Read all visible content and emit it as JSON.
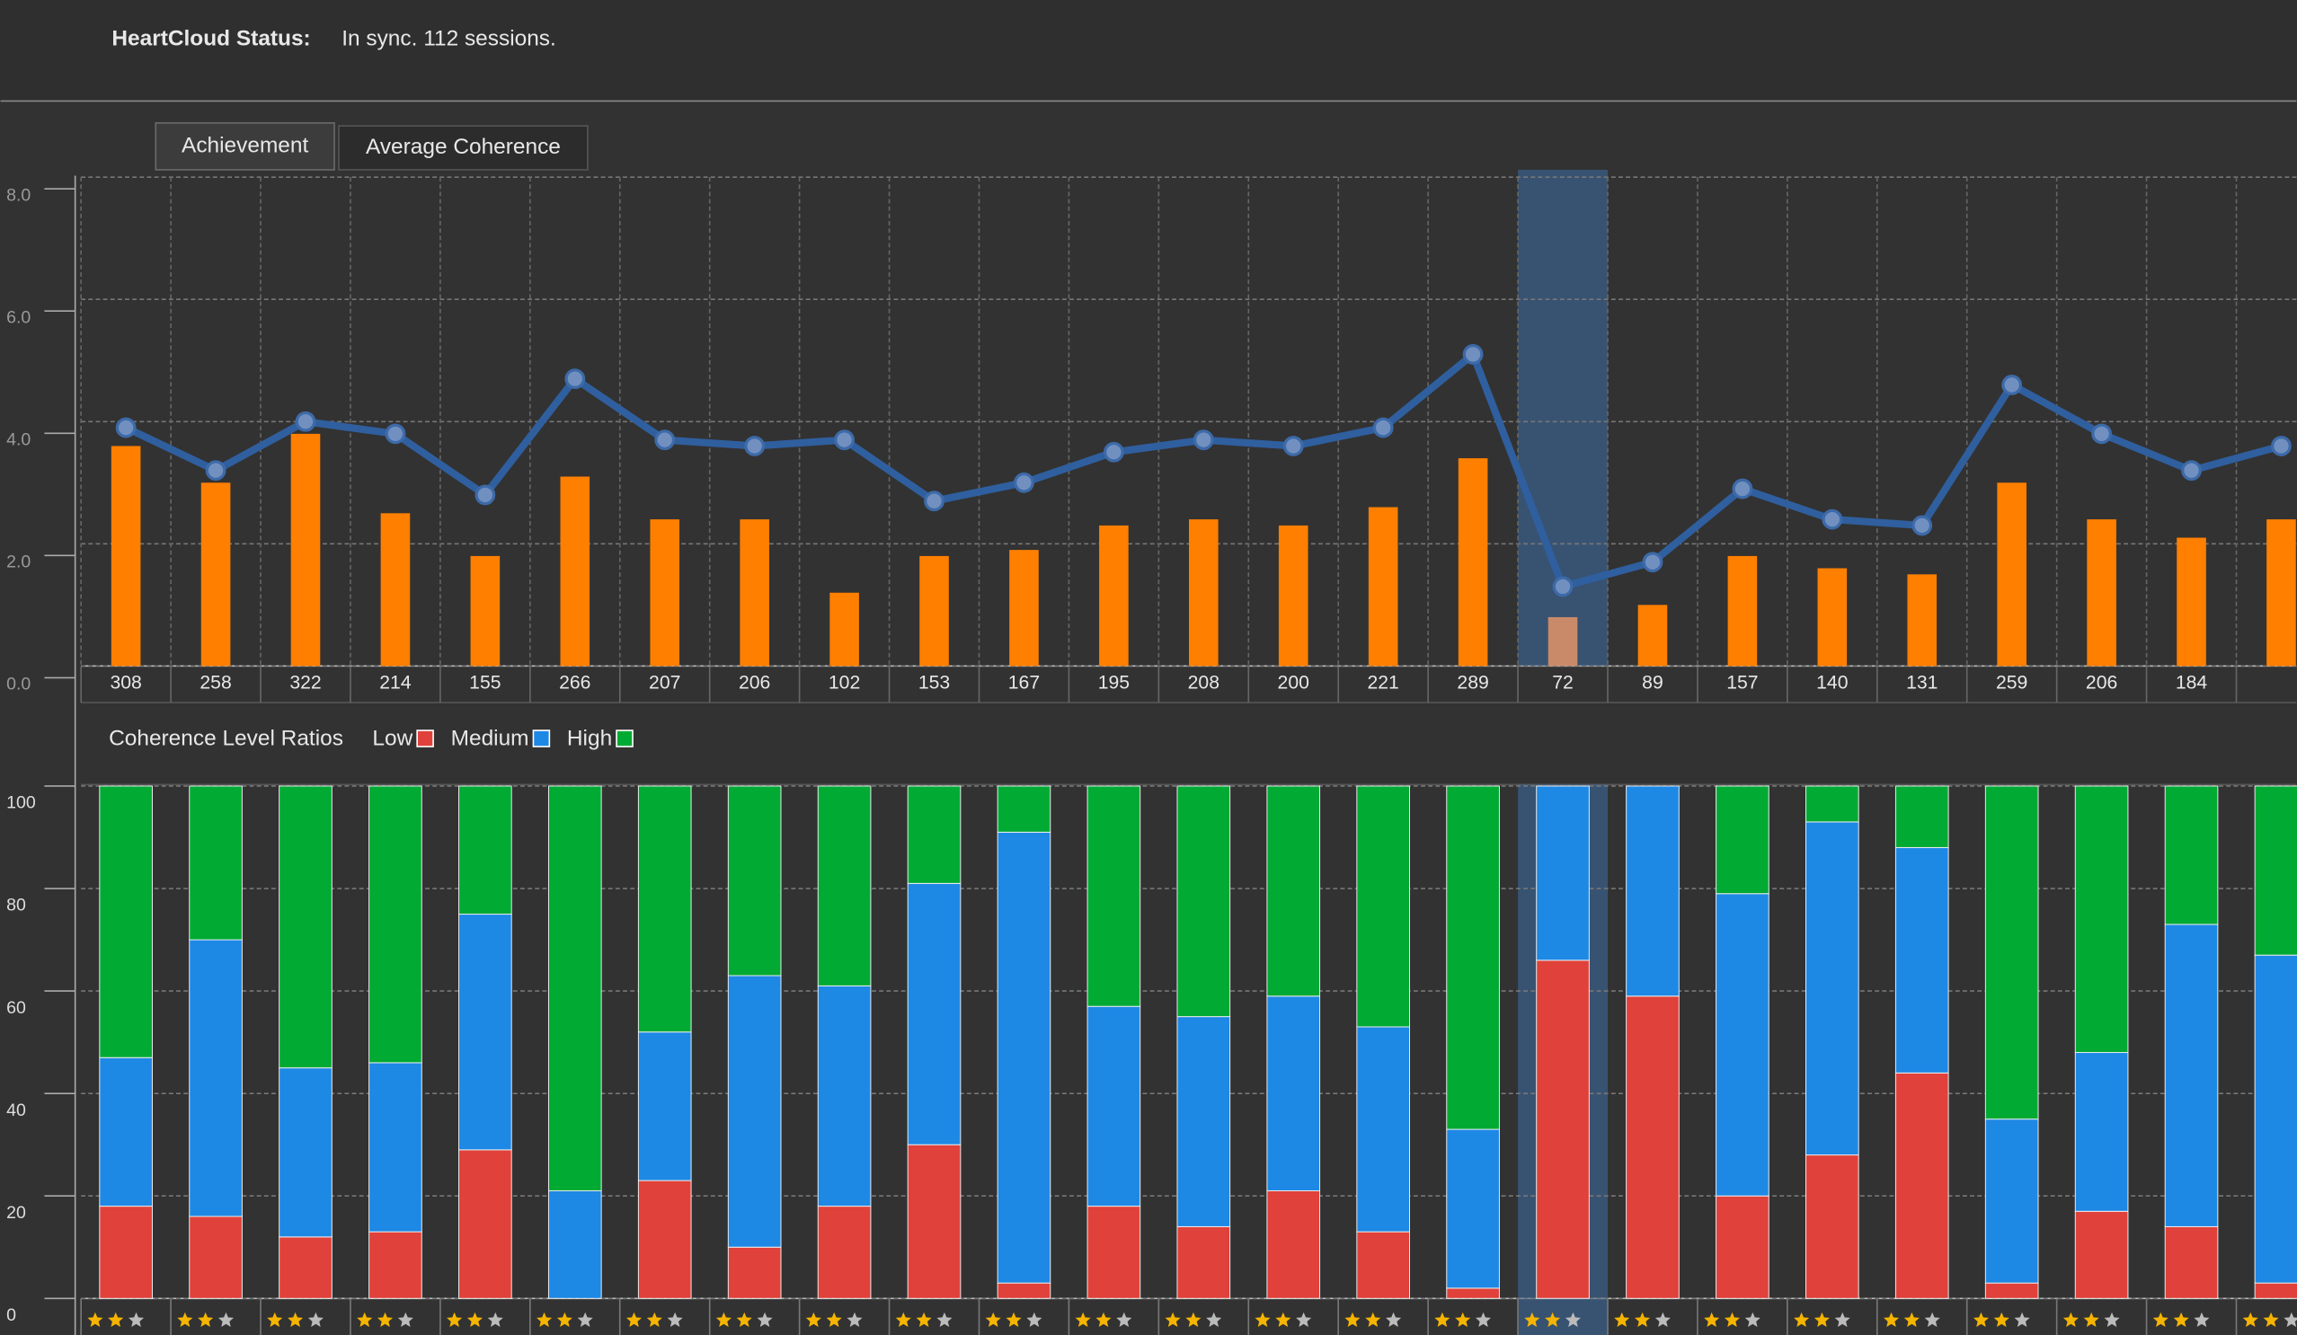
{
  "header": {
    "status_label": "HeartCloud Status:",
    "status_text": "In sync. 112 sessions."
  },
  "tabs": [
    "Achievement",
    "Average Coherence"
  ],
  "chart_data": [
    {
      "type": "combo",
      "categories": [
        "308",
        "258",
        "322",
        "214",
        "155",
        "266",
        "207",
        "206",
        "102",
        "153",
        "167",
        "195",
        "208",
        "200",
        "221",
        "289",
        "72",
        "89",
        "157",
        "140",
        "131",
        "259",
        "206",
        "184",
        null
      ],
      "selected_index": 16,
      "series": [
        {
          "type": "bar",
          "color": "#ff7f00",
          "selected_color": "#c98a6a",
          "values": [
            3.6,
            3.0,
            3.8,
            2.5,
            1.8,
            3.1,
            2.4,
            2.4,
            1.2,
            1.8,
            1.9,
            2.3,
            2.4,
            2.3,
            2.6,
            3.4,
            0.8,
            1.0,
            1.8,
            1.6,
            1.5,
            3.0,
            2.4,
            2.1,
            2.4
          ]
        },
        {
          "type": "line",
          "color": "#2f5f9e",
          "values": [
            3.9,
            3.2,
            4.0,
            3.8,
            2.8,
            4.7,
            3.7,
            3.6,
            3.7,
            2.7,
            3.0,
            3.5,
            3.7,
            3.6,
            3.9,
            5.1,
            1.3,
            1.7,
            2.9,
            2.4,
            2.3,
            4.6,
            3.8,
            3.2,
            3.6
          ]
        }
      ],
      "ylim": [
        0,
        8
      ],
      "yticks": [
        {
          "value": 0,
          "label": "0.0"
        },
        {
          "value": 2,
          "label": "2.0"
        },
        {
          "value": 4,
          "label": "4.0"
        },
        {
          "value": 6,
          "label": "6.0"
        },
        {
          "value": 8,
          "label": "8.0"
        }
      ],
      "grid": true
    },
    {
      "type": "stacked_bar",
      "title": "Coherence Level Ratios",
      "series": [
        {
          "name": "Low",
          "color": "#e0413a",
          "values": [
            18,
            16,
            12,
            13,
            29,
            0,
            23,
            10,
            18,
            30,
            3,
            18,
            14,
            21,
            13,
            2,
            66,
            59,
            20,
            28,
            44,
            3,
            17,
            14,
            3
          ]
        },
        {
          "name": "Medium",
          "color": "#1e88e5",
          "values": [
            29,
            54,
            33,
            33,
            46,
            21,
            29,
            53,
            43,
            51,
            88,
            39,
            41,
            38,
            40,
            31,
            34,
            41,
            59,
            65,
            44,
            32,
            31,
            59,
            64
          ]
        },
        {
          "name": "High",
          "color": "#00aa33",
          "values": [
            53,
            30,
            55,
            54,
            25,
            79,
            48,
            37,
            39,
            19,
            9,
            43,
            45,
            41,
            47,
            67,
            0,
            0,
            21,
            7,
            12,
            65,
            52,
            27,
            33
          ]
        }
      ],
      "ratings": [
        2,
        2,
        2,
        2,
        2,
        2,
        2,
        2,
        2,
        2,
        2,
        2,
        2,
        2,
        2,
        2,
        2,
        2,
        2,
        2,
        2,
        2,
        2,
        2,
        2
      ],
      "ylim": [
        0,
        100
      ],
      "yticks": [
        0,
        20,
        40,
        60,
        80,
        100
      ],
      "grid": true
    }
  ]
}
